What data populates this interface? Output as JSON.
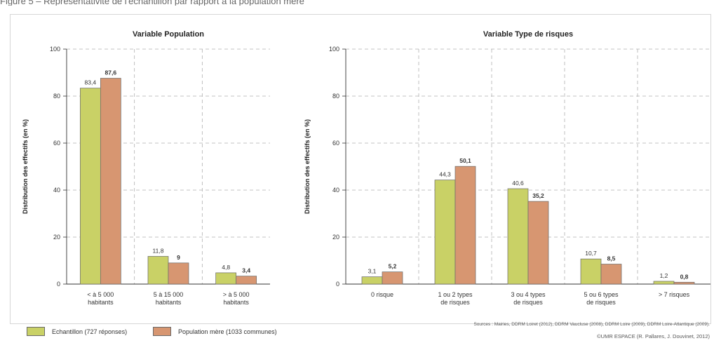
{
  "figure": {
    "top_caption": "Figure 5 – Représentativité de l'échantillon par rapport à la population mère",
    "legend": {
      "sample": "Echantillon (727 réponses)",
      "population": "Population mère (1033 communes)"
    },
    "sources": "Sources : Mairies, DDRM Loiret (2012), DDRM Vaucluse (2008), DDRM Loire (2009), DDRM Loire-Atlantique (2009).",
    "credit": "©UMR ESPACE (R. Pallares, J. Douvinet, 2012)"
  },
  "colors": {
    "sample": "#c9d166",
    "population": "#d79671",
    "grid": "#b0b0b0",
    "axis": "#333333"
  },
  "chart_data": [
    {
      "type": "bar",
      "title": "Variable Population",
      "ylabel": "Distribution des effectifs (en %)",
      "ylim": [
        0,
        100
      ],
      "yticks": [
        0,
        20,
        40,
        60,
        80,
        100
      ],
      "grid": true,
      "categories": [
        [
          "< à 5 000",
          "habitants"
        ],
        [
          "5 à 15 000",
          "habitants"
        ],
        [
          "> à 5 000",
          "habitants"
        ]
      ],
      "series": [
        {
          "name": "Echantillon (727 réponses)",
          "values": [
            83.4,
            11.8,
            4.8
          ],
          "labels": [
            "83,4",
            "11,8",
            "4,8"
          ]
        },
        {
          "name": "Population mère (1033 communes)",
          "values": [
            87.6,
            9,
            3.4
          ],
          "labels": [
            "87,6",
            "9",
            "3,4"
          ]
        }
      ]
    },
    {
      "type": "bar",
      "title": "Variable Type de risques",
      "ylabel": "Distribution des effectifs (en %)",
      "ylim": [
        0,
        100
      ],
      "yticks": [
        0,
        20,
        40,
        60,
        80,
        100
      ],
      "grid": true,
      "categories": [
        [
          "0 risque"
        ],
        [
          "1 ou 2 types",
          "de risques"
        ],
        [
          "3 ou 4 types",
          "de risques"
        ],
        [
          "5 ou 6 types",
          "de risques"
        ],
        [
          "> 7 risques"
        ]
      ],
      "series": [
        {
          "name": "Echantillon (727 réponses)",
          "values": [
            3.1,
            44.3,
            40.6,
            10.7,
            1.2
          ],
          "labels": [
            "3,1",
            "44,3",
            "40,6",
            "10,7",
            "1,2"
          ]
        },
        {
          "name": "Population mère (1033 communes)",
          "values": [
            5.2,
            50.1,
            35.2,
            8.5,
            0.8
          ],
          "labels": [
            "5,2",
            "50,1",
            "35,2",
            "8,5",
            "0,8"
          ]
        }
      ]
    }
  ]
}
